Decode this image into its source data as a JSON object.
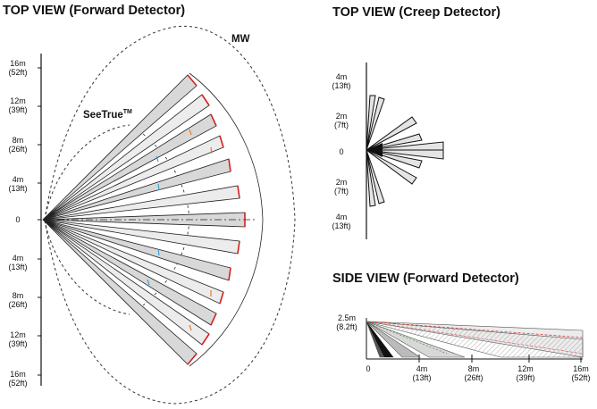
{
  "titles": {
    "forward_top": "TOP VIEW (Forward Detector)",
    "creep_top": "TOP VIEW (Creep Detector)",
    "forward_side": "SIDE VIEW (Forward Detector)"
  },
  "tags": {
    "mw": "MW",
    "seetrue": "SeeTrue",
    "seetrue_sup": "TM"
  },
  "forward_axis": [
    {
      "m": "16m",
      "ft": "(52ft)"
    },
    {
      "m": "12m",
      "ft": "(39ft)"
    },
    {
      "m": "8m",
      "ft": "(26ft)"
    },
    {
      "m": "4m",
      "ft": "(13ft)"
    },
    {
      "m": "0",
      "ft": ""
    },
    {
      "m": "4m",
      "ft": "(13ft)"
    },
    {
      "m": "8m",
      "ft": "(26ft)"
    },
    {
      "m": "12m",
      "ft": "(39ft)"
    },
    {
      "m": "16m",
      "ft": "(52ft)"
    }
  ],
  "creep_axis": [
    {
      "m": "4m",
      "ft": "(13ft)"
    },
    {
      "m": "2m",
      "ft": "(7ft)"
    },
    {
      "m": "0",
      "ft": ""
    },
    {
      "m": "2m",
      "ft": "(7ft)"
    },
    {
      "m": "4m",
      "ft": "(13ft)"
    }
  ],
  "side_y_label": {
    "m": "2.5m",
    "ft": "(8.2ft)"
  },
  "side_x_axis": [
    {
      "m": "0",
      "ft": ""
    },
    {
      "m": "4m",
      "ft": "(13ft)"
    },
    {
      "m": "8m",
      "ft": "(26ft)"
    },
    {
      "m": "12m",
      "ft": "(39ft)"
    },
    {
      "m": "16m",
      "ft": "(52ft)"
    }
  ],
  "colors": {
    "beam_fill_light": "#ececec",
    "beam_fill_dark": "#d8d8d8",
    "beam_stroke": "#222222",
    "mw_outline": "#333333",
    "end_marker_red": "#d42020",
    "tick_orange": "#e87a2a",
    "tick_blue": "#3aa0d8",
    "side_red": "#d44040",
    "side_green": "#50a050"
  }
}
